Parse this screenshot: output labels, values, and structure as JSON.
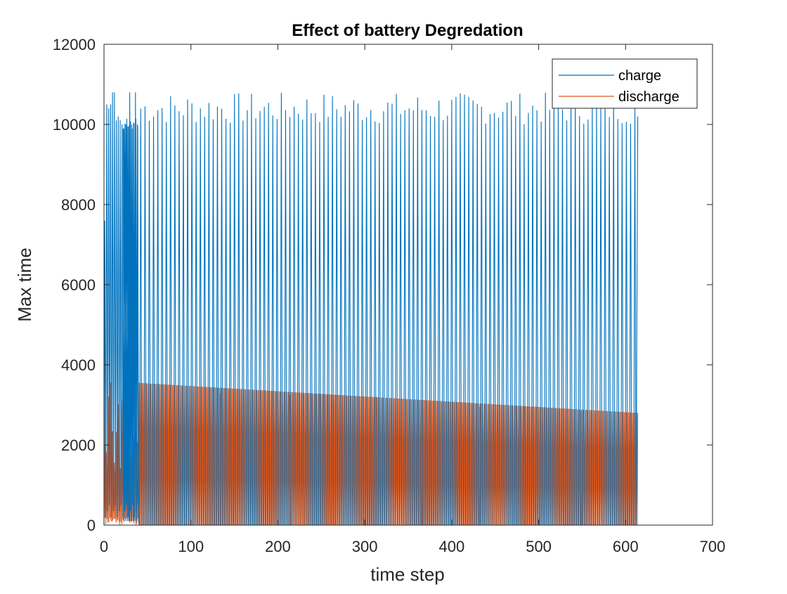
{
  "chart_data": {
    "type": "line",
    "title": "Effect of battery Degredation",
    "xlabel": "time step",
    "ylabel": "Max time",
    "xlim": [
      0,
      700
    ],
    "ylim": [
      0,
      12000
    ],
    "x_ticks": [
      0,
      100,
      200,
      300,
      400,
      500,
      600,
      700
    ],
    "x_tick_labels": [
      "0",
      "100",
      "200",
      "300",
      "400",
      "500",
      "600",
      "700"
    ],
    "y_ticks": [
      0,
      2000,
      4000,
      6000,
      8000,
      10000,
      12000
    ],
    "y_tick_labels": [
      "0",
      "2000",
      "4000",
      "6000",
      "8000",
      "10000",
      "12000"
    ],
    "grid": false,
    "legend_position": "top-right",
    "series": [
      {
        "name": "charge",
        "color": "#0072BD",
        "description": "Periodic spikes from ~0 up to 10000-10800 every ~5 steps, steps 0 to 614",
        "peak_range": [
          9900,
          10800
        ],
        "early_peaks": [
          7600,
          10500,
          10400,
          10500,
          10800,
          10800,
          10100,
          10200,
          10100,
          10000,
          9900,
          10000,
          9950,
          10800,
          10000,
          10050,
          10800,
          10000
        ],
        "late_peak_min": 10000,
        "late_peak_max": 10800,
        "baseline": 0,
        "x_end": 614,
        "last_value": 10200
      },
      {
        "name": "discharge",
        "color": "#D95319",
        "description": "Dense spikes from 0 up to an envelope decaying from ~3700 to ~2800",
        "envelope_start": 3700,
        "envelope_at_40": 3550,
        "envelope_end": 2800,
        "outlier_steps": [
          134,
          149,
          214,
          264,
          313,
          366,
          432,
          484,
          549
        ],
        "outlier_peaks": [
          3300,
          3350,
          3250,
          3100,
          3200,
          2950,
          2950,
          2950,
          2850
        ],
        "baseline": 0,
        "x_end": 614
      }
    ]
  }
}
